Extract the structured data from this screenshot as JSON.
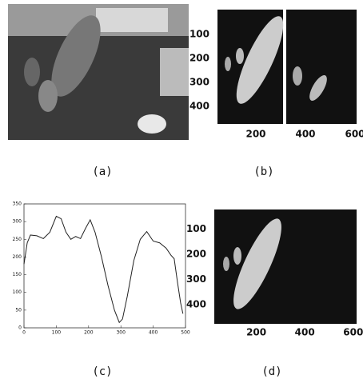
{
  "image_panels": [
    {
      "caption": "(a)"
    },
    {
      "caption": "(b)",
      "yticks": [
        100,
        200,
        300,
        400
      ],
      "xticks": [
        200,
        400,
        600
      ]
    },
    {
      "caption": "(d)",
      "yticks": [
        100,
        200,
        300,
        400
      ],
      "xticks": [
        200,
        400,
        600
      ]
    }
  ],
  "chart_data": {
    "type": "line",
    "caption": "(c)",
    "x": [
      0,
      10,
      20,
      40,
      60,
      80,
      100,
      115,
      130,
      145,
      160,
      175,
      190,
      205,
      220,
      240,
      260,
      280,
      295,
      305,
      320,
      340,
      360,
      380,
      400,
      420,
      440,
      455,
      465,
      475,
      485,
      492
    ],
    "series": [
      {
        "color": "#222222",
        "values": [
          180,
          240,
          262,
          260,
          252,
          270,
          315,
          308,
          270,
          250,
          258,
          252,
          280,
          305,
          270,
          200,
          120,
          50,
          15,
          25,
          90,
          190,
          250,
          272,
          245,
          240,
          225,
          205,
          195,
          130,
          70,
          40
        ]
      }
    ],
    "xlim": [
      0,
      500
    ],
    "ylim": [
      0,
      350
    ],
    "xticks": [
      0,
      100,
      200,
      300,
      400,
      500
    ],
    "yticks": [
      0,
      50,
      100,
      150,
      200,
      250,
      300,
      350
    ]
  }
}
